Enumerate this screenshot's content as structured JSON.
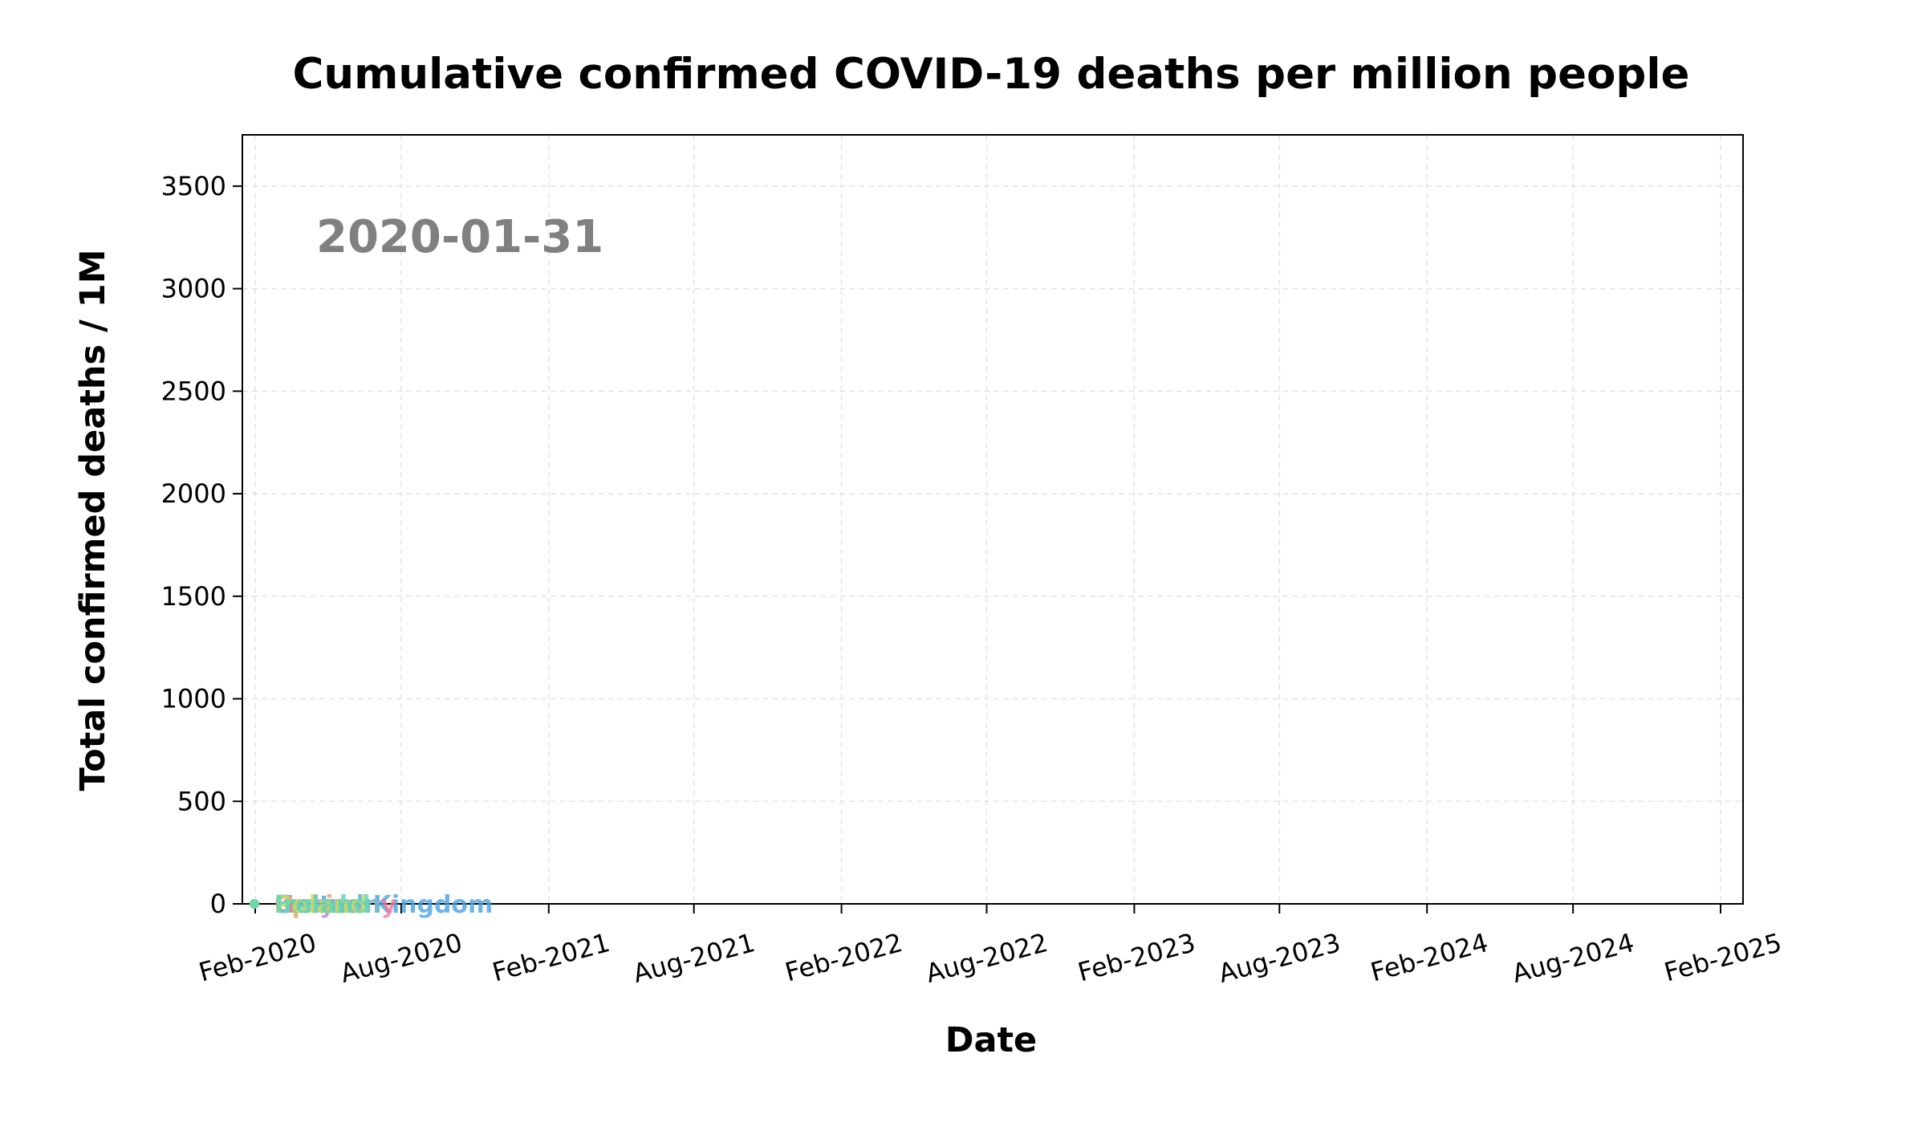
{
  "chart_data": {
    "type": "line",
    "title": "Cumulative confirmed COVID-19 deaths per million people",
    "xlabel": "Date",
    "ylabel": "Total confirmed deaths / 1M",
    "date_annotation": "2020-01-31",
    "x_range": [
      "2020-01-16",
      "2025-03-01"
    ],
    "ylim": [
      0,
      3750
    ],
    "yticks": [
      0,
      500,
      1000,
      1500,
      2000,
      2500,
      3000,
      3500
    ],
    "xticks": [
      {
        "date": "2020-02-01",
        "label": "Feb-2020"
      },
      {
        "date": "2020-08-01",
        "label": "Aug-2020"
      },
      {
        "date": "2021-02-01",
        "label": "Feb-2021"
      },
      {
        "date": "2021-08-01",
        "label": "Aug-2021"
      },
      {
        "date": "2022-02-01",
        "label": "Feb-2022"
      },
      {
        "date": "2022-08-01",
        "label": "Aug-2022"
      },
      {
        "date": "2023-02-01",
        "label": "Feb-2023"
      },
      {
        "date": "2023-08-01",
        "label": "Aug-2023"
      },
      {
        "date": "2024-02-01",
        "label": "Feb-2024"
      },
      {
        "date": "2024-08-01",
        "label": "Aug-2024"
      },
      {
        "date": "2025-02-01",
        "label": "Feb-2025"
      }
    ],
    "grid": true,
    "series": [
      {
        "name": "United Kingdom",
        "color": "#4aa3df",
        "date": "2020-01-31",
        "value": 0
      },
      {
        "name": "Italy",
        "color": "#c97bd6",
        "date": "2020-01-31",
        "value": 0
      },
      {
        "name": "Spain",
        "color": "#e0a060",
        "date": "2020-01-31",
        "value": 0
      },
      {
        "name": "France",
        "color": "#7fd07a",
        "date": "2020-01-31",
        "value": 0
      },
      {
        "name": "Germany",
        "color": "#f07a9a",
        "date": "2020-01-31",
        "value": 0
      },
      {
        "name": "Sweden",
        "color": "#5ec8d8",
        "date": "2020-01-31",
        "value": 0
      },
      {
        "name": "Poland",
        "color": "#d8d860",
        "date": "2020-01-31",
        "value": 0
      },
      {
        "name": "Ireland",
        "color": "#60d8b0",
        "date": "2020-01-31",
        "value": 0
      }
    ]
  }
}
